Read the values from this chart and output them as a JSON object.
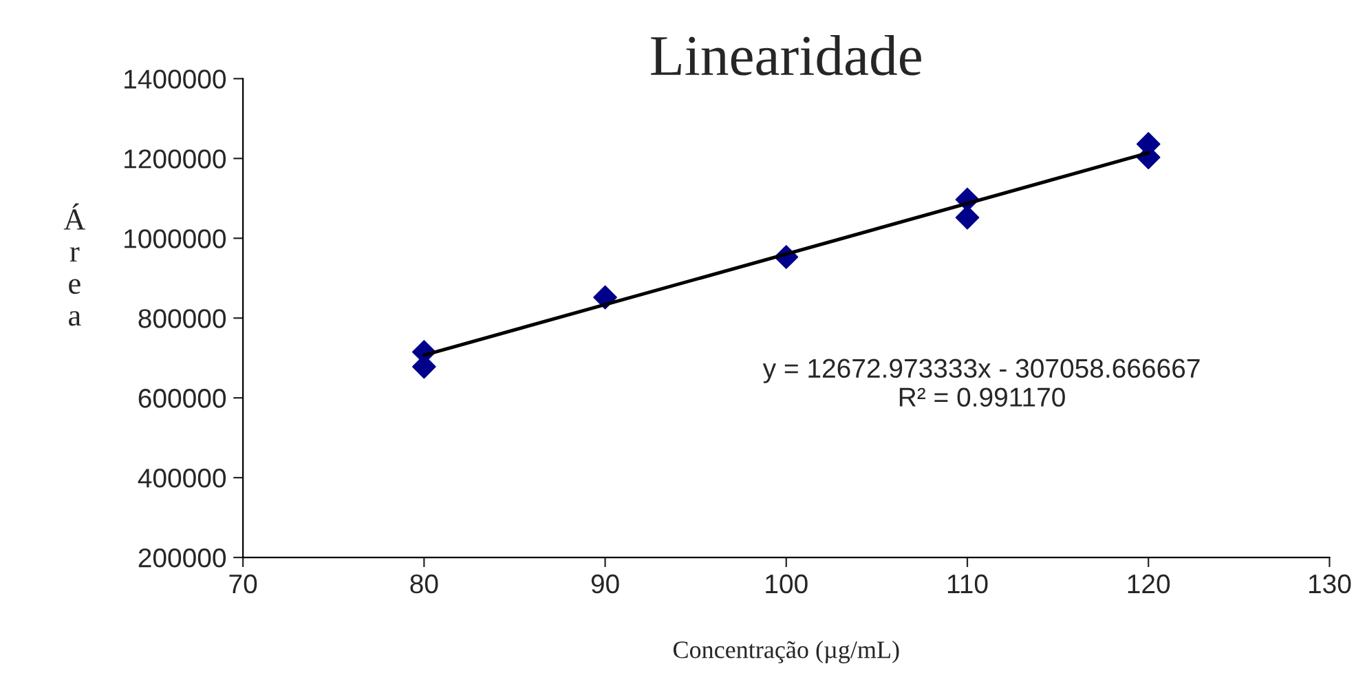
{
  "chart_data": {
    "type": "scatter",
    "title": "Linearidade",
    "xlabel": "Concentração (µg/mL)",
    "ylabel": "Área",
    "xlim": [
      70,
      130
    ],
    "xticks": [
      70,
      80,
      90,
      100,
      110,
      120,
      130
    ],
    "ylim": [
      200000,
      1400000
    ],
    "yticks": [
      200000,
      400000,
      600000,
      800000,
      1000000,
      1200000,
      1400000
    ],
    "grid": false,
    "legend": false,
    "marker": "diamond",
    "series": [
      {
        "color": "#00008b",
        "x": [
          80,
          80,
          90,
          100,
          110,
          110,
          120,
          120
        ],
        "values": [
          715000,
          678000,
          852000,
          953000,
          1097000,
          1052000,
          1236000,
          1203000
        ]
      },
      {
        "type": "line",
        "color": "#000000",
        "marker": "none",
        "x": [
          80,
          120
        ],
        "values": [
          707000,
          1214000
        ]
      }
    ],
    "annotations": [
      "y = 12672.973333x - 307058.666667\nR² = 0.991170"
    ]
  }
}
